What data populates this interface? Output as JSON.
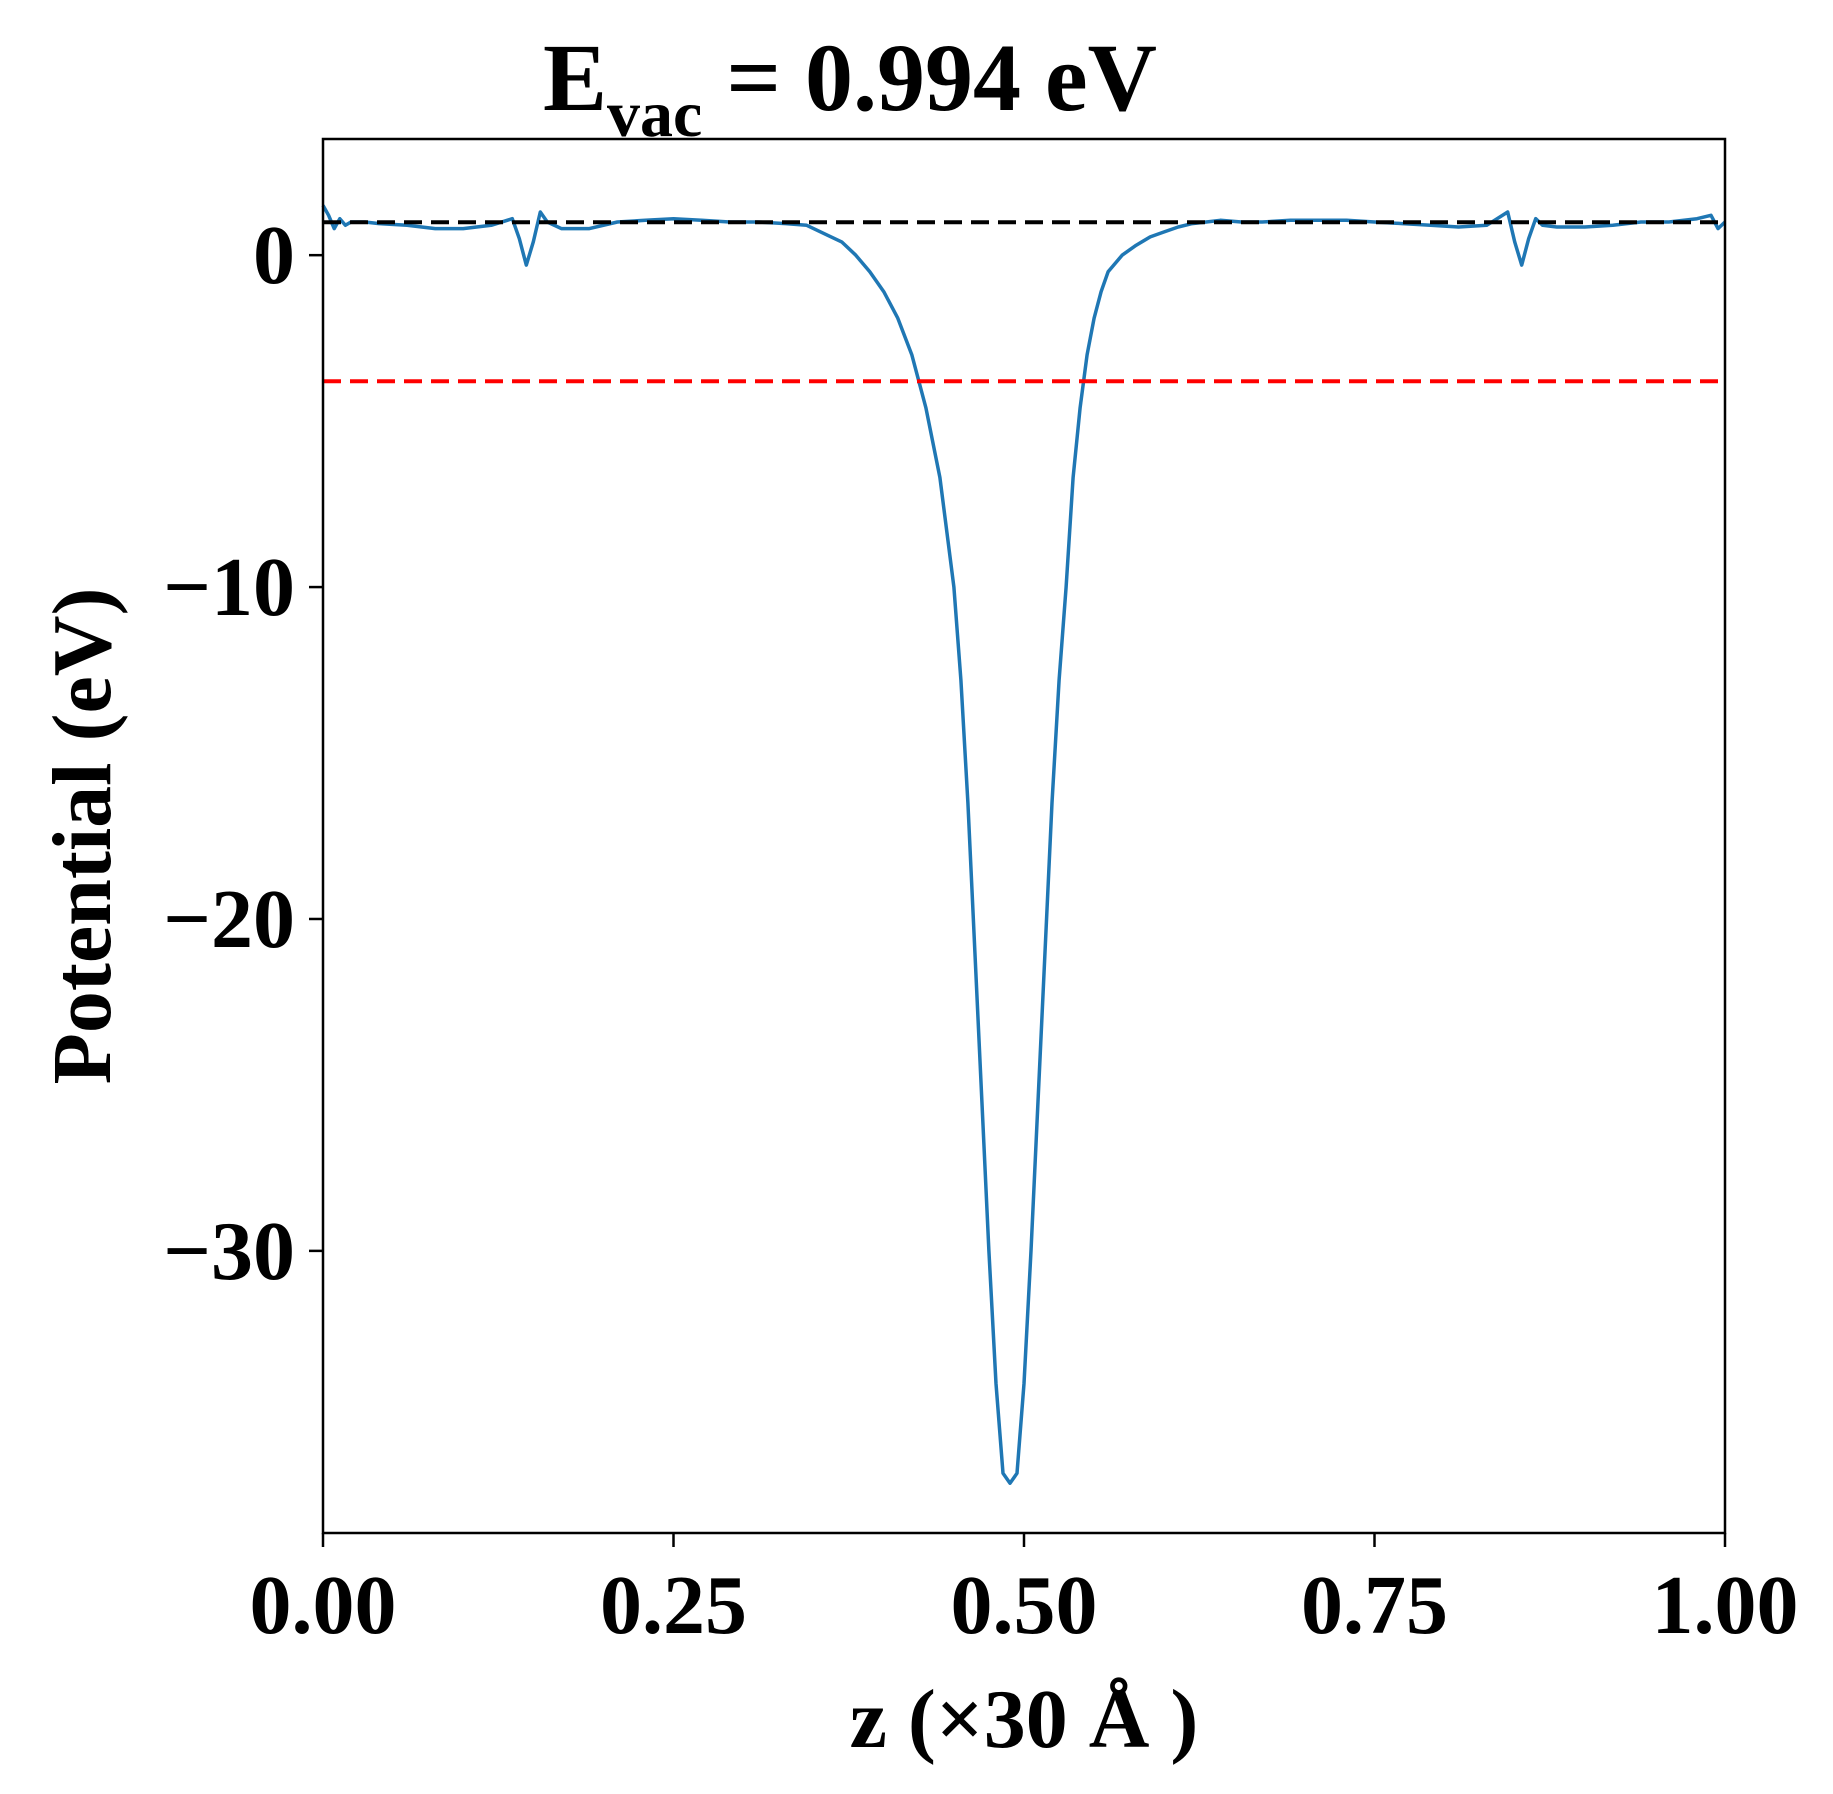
{
  "chart_data": {
    "type": "line",
    "title": {
      "main": "E",
      "subscript": "vac",
      "rest": " = 0.994 eV"
    },
    "xlabel": "z (×30 Å )",
    "ylabel": "Potential (eV)",
    "xlim": [
      0,
      1
    ],
    "ylim": [
      -38.5,
      3.5
    ],
    "xticks": [
      0.0,
      0.25,
      0.5,
      0.75,
      1.0
    ],
    "xtick_labels": [
      "0.00",
      "0.25",
      "0.50",
      "0.75",
      "1.00"
    ],
    "yticks": [
      0,
      -10,
      -20,
      -30
    ],
    "ytick_labels": [
      "0",
      "−10",
      "−20",
      "−30"
    ],
    "grid": false,
    "series": [
      {
        "color": "#1f77b4",
        "style": "solid",
        "x": [
          0.0,
          0.004,
          0.008,
          0.012,
          0.016,
          0.02,
          0.03,
          0.04,
          0.06,
          0.08,
          0.1,
          0.12,
          0.135,
          0.14,
          0.145,
          0.15,
          0.155,
          0.16,
          0.17,
          0.19,
          0.21,
          0.23,
          0.25,
          0.27,
          0.29,
          0.31,
          0.33,
          0.345,
          0.36,
          0.37,
          0.38,
          0.39,
          0.4,
          0.41,
          0.42,
          0.43,
          0.44,
          0.45,
          0.455,
          0.46,
          0.465,
          0.47,
          0.475,
          0.48,
          0.485,
          0.49,
          0.495,
          0.5,
          0.505,
          0.51,
          0.515,
          0.52,
          0.525,
          0.53,
          0.535,
          0.54,
          0.545,
          0.55,
          0.555,
          0.56,
          0.57,
          0.58,
          0.59,
          0.6,
          0.61,
          0.62,
          0.63,
          0.64,
          0.655,
          0.67,
          0.69,
          0.71,
          0.73,
          0.75,
          0.77,
          0.79,
          0.81,
          0.83,
          0.845,
          0.85,
          0.855,
          0.86,
          0.865,
          0.87,
          0.88,
          0.9,
          0.92,
          0.94,
          0.96,
          0.98,
          0.99,
          0.995,
          1.0
        ],
        "y": [
          1.5,
          1.2,
          0.8,
          1.1,
          0.9,
          1.0,
          1.0,
          0.95,
          0.9,
          0.8,
          0.8,
          0.9,
          1.1,
          0.5,
          -0.3,
          0.4,
          1.3,
          1.0,
          0.8,
          0.8,
          1.0,
          1.05,
          1.1,
          1.05,
          1.0,
          1.0,
          0.95,
          0.9,
          0.6,
          0.4,
          0.0,
          -0.5,
          -1.1,
          -1.9,
          -3.0,
          -4.6,
          -6.7,
          -10.0,
          -12.8,
          -16.5,
          -21.0,
          -25.5,
          -30.0,
          -34.0,
          -36.7,
          -37.0,
          -36.7,
          -34.0,
          -30.0,
          -25.5,
          -21.0,
          -16.5,
          -12.8,
          -10.0,
          -6.7,
          -4.6,
          -3.0,
          -1.9,
          -1.1,
          -0.5,
          0.0,
          0.3,
          0.55,
          0.7,
          0.85,
          0.95,
          1.0,
          1.05,
          1.0,
          1.0,
          1.05,
          1.05,
          1.05,
          1.0,
          0.95,
          0.9,
          0.85,
          0.9,
          1.3,
          0.4,
          -0.3,
          0.5,
          1.1,
          0.9,
          0.85,
          0.85,
          0.9,
          1.0,
          1.0,
          1.1,
          1.2,
          0.8,
          1.0
        ]
      },
      {
        "color": "#000000",
        "style": "dashed",
        "x": [
          0,
          1
        ],
        "y": [
          0.994,
          0.994
        ]
      },
      {
        "color": "#ff0000",
        "style": "dashed",
        "x": [
          0,
          1
        ],
        "y": [
          -3.8,
          -3.8
        ]
      }
    ]
  }
}
